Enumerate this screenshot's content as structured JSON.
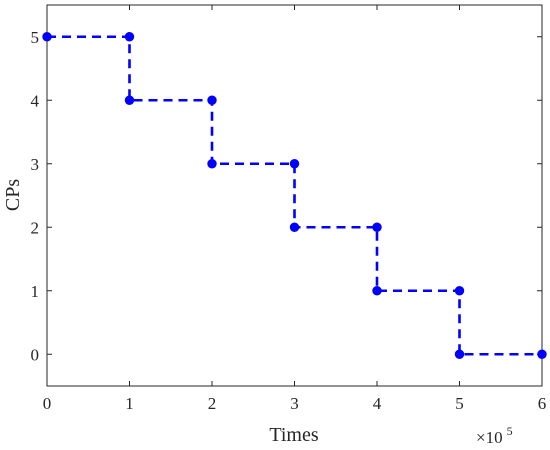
{
  "chart_data": {
    "type": "line",
    "xlabel": "Times",
    "ylabel": "CPs",
    "x_multiplier": {
      "base": "×10",
      "exponent": "5"
    },
    "xlim": [
      0,
      6
    ],
    "ylim": [
      -0.5,
      5.5
    ],
    "xticks": [
      0,
      1,
      2,
      3,
      4,
      5,
      6
    ],
    "yticks": [
      0,
      1,
      2,
      3,
      4,
      5
    ],
    "grid": false,
    "series": [
      {
        "color": "#0000ff",
        "line_style": "dashed",
        "marker": "circle",
        "points": [
          [
            0,
            5
          ],
          [
            1,
            5
          ],
          [
            1,
            4
          ],
          [
            2,
            4
          ],
          [
            2,
            3
          ],
          [
            3,
            3
          ],
          [
            3,
            2
          ],
          [
            4,
            2
          ],
          [
            4,
            1
          ],
          [
            5,
            1
          ],
          [
            5,
            0
          ],
          [
            6,
            0
          ]
        ]
      }
    ]
  }
}
